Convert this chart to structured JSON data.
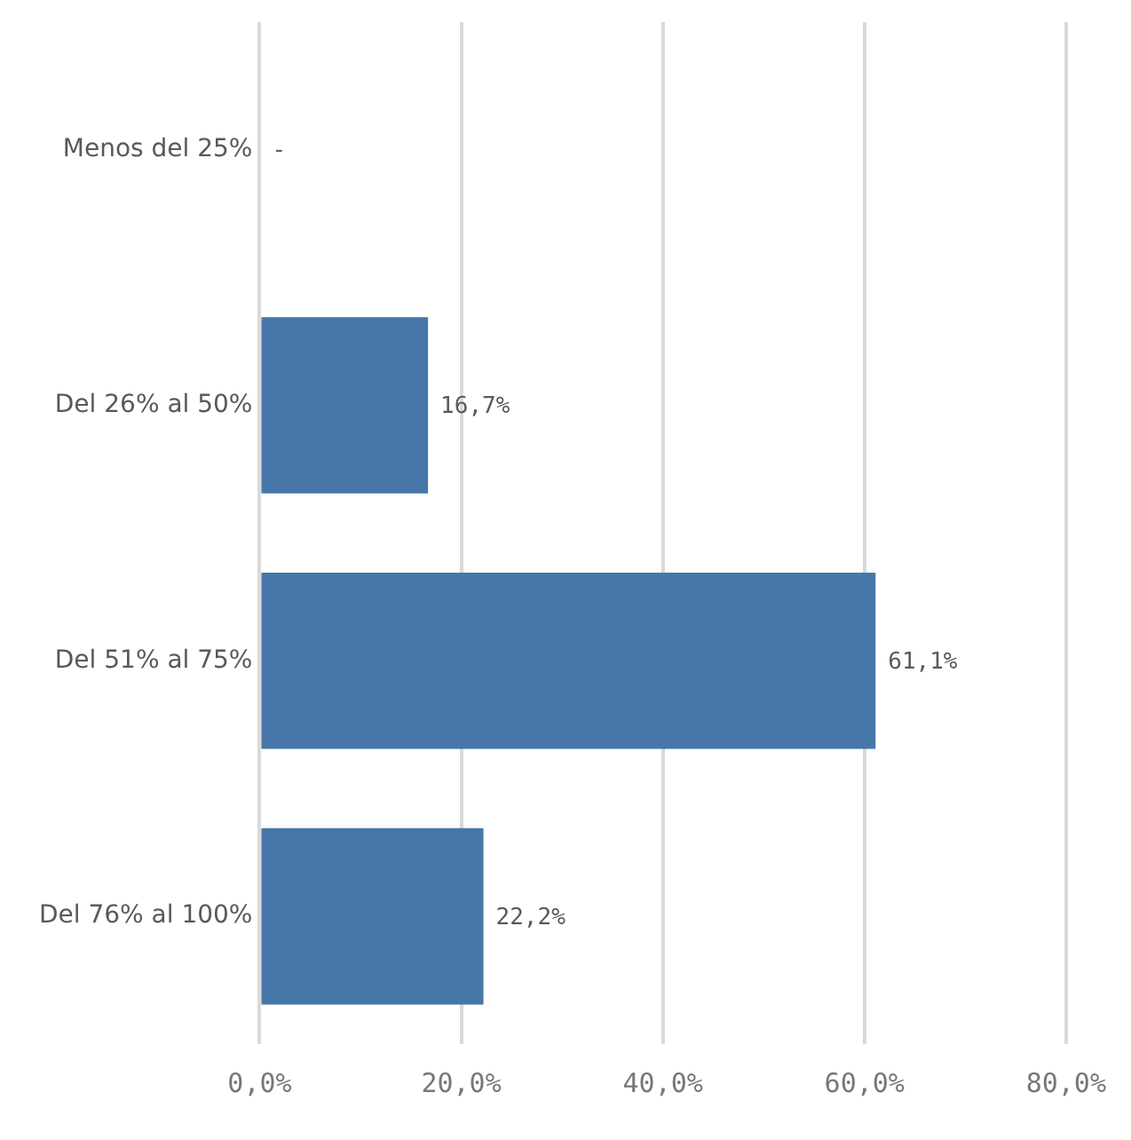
{
  "chart_data": {
    "type": "bar",
    "orientation": "horizontal",
    "categories": [
      "Menos del 25%",
      "Del 26% al 50%",
      "Del 51% al 75%",
      "Del 76% al 100%"
    ],
    "values": [
      0,
      16.7,
      61.1,
      22.2
    ],
    "value_labels": [
      "-",
      "16,7%",
      "61,1%",
      "22,2%"
    ],
    "color": "#4677a8",
    "xlim": [
      0,
      80
    ],
    "xticks": [
      {
        "value": 0,
        "label": "0,0%"
      },
      {
        "value": 20,
        "label": "20,0%"
      },
      {
        "value": 40,
        "label": "40,0%"
      },
      {
        "value": 60,
        "label": "60,0%"
      },
      {
        "value": 80,
        "label": "80,0%"
      }
    ],
    "grid": "x",
    "legend": false
  }
}
